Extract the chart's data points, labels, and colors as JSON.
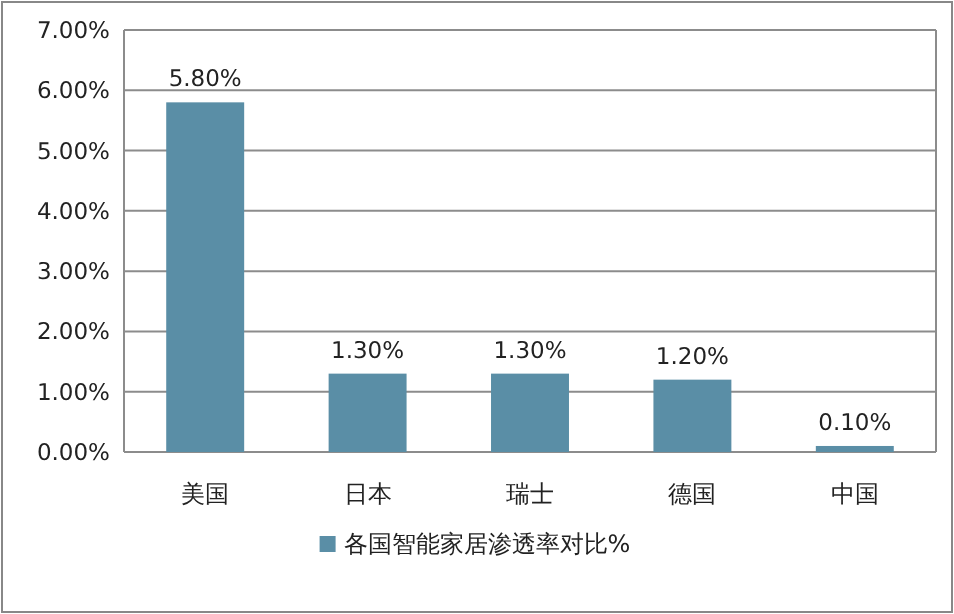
{
  "chart_data": {
    "type": "bar",
    "categories": [
      "美国",
      "日本",
      "瑞士",
      "德国",
      "中国"
    ],
    "series": [
      {
        "name": "各国智能家居渗透率对比%",
        "color": "#5a8ea6",
        "values": [
          5.8,
          1.3,
          1.3,
          1.2,
          0.1
        ],
        "value_labels": [
          "5.80%",
          "1.30%",
          "1.30%",
          "1.20%",
          "0.10%"
        ]
      }
    ],
    "ylim": [
      0,
      7
    ],
    "yticks": [
      {
        "value": 0,
        "label": "0.00%"
      },
      {
        "value": 1,
        "label": "1.00%"
      },
      {
        "value": 2,
        "label": "2.00%"
      },
      {
        "value": 3,
        "label": "3.00%"
      },
      {
        "value": 4,
        "label": "4.00%"
      },
      {
        "value": 5,
        "label": "5.00%"
      },
      {
        "value": 6,
        "label": "6.00%"
      },
      {
        "value": 7,
        "label": "7.00%"
      }
    ],
    "grid": "y",
    "legend": "bottom"
  }
}
